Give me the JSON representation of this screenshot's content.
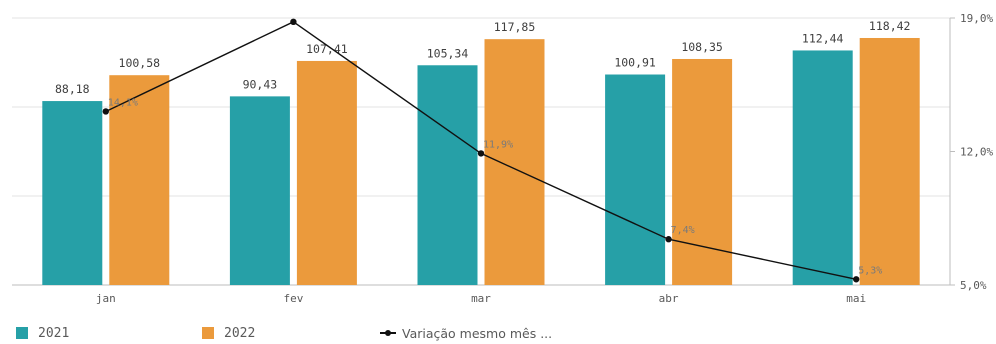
{
  "chart_data": {
    "type": "bar",
    "categories": [
      "jan",
      "fev",
      "mar",
      "abr",
      "mai"
    ],
    "series": [
      {
        "name": "2021",
        "type": "bar",
        "color": "#26a0a7",
        "values": [
          88.18,
          90.43,
          105.34,
          100.91,
          112.44
        ],
        "labels": [
          "88,18",
          "90,43",
          "105,34",
          "100,91",
          "112,44"
        ]
      },
      {
        "name": "2022",
        "type": "bar",
        "color": "#eb9a3c",
        "values": [
          100.58,
          107.41,
          117.85,
          108.35,
          118.42
        ],
        "labels": [
          "100,58",
          "107,41",
          "117,85",
          "108,35",
          "118,42"
        ]
      },
      {
        "name": "Variação mesmo mês ...",
        "type": "line",
        "axis": "right",
        "color": "#111111",
        "values": [
          14.1,
          18.8,
          11.9,
          7.4,
          5.3
        ],
        "labels": [
          "14,1%",
          "",
          "11,9%",
          "7,4%",
          "5,3%"
        ]
      }
    ],
    "y_left": {
      "range": [
        0,
        128
      ],
      "visible_ticks": false
    },
    "y_right": {
      "range": [
        5.0,
        19.0
      ],
      "ticks": [
        5.0,
        12.0,
        19.0
      ],
      "tick_labels": [
        "5,0%",
        "12,0%",
        "19,0%"
      ]
    },
    "grid": true,
    "legend": "bottom-left"
  },
  "legend": {
    "items": [
      {
        "label": "2021",
        "color": "#26a0a7"
      },
      {
        "label": "2022",
        "color": "#eb9a3c"
      },
      {
        "label": "Variação mesmo mês ...",
        "color": "#111111"
      }
    ]
  }
}
